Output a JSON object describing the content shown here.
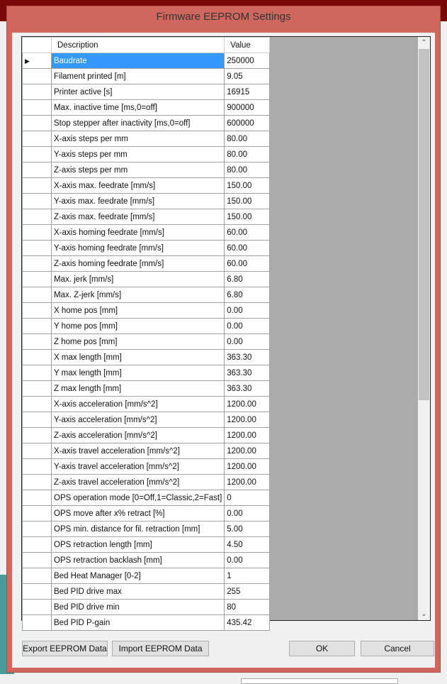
{
  "dialog": {
    "title": "Firmware EEPROM Settings"
  },
  "grid": {
    "headers": {
      "description": "Description",
      "value": "Value"
    },
    "rows": [
      [
        "Baudrate",
        "250000"
      ],
      [
        "Filament printed [m]",
        "9.05"
      ],
      [
        "Printer active [s]",
        "16915"
      ],
      [
        "Max. inactive time [ms,0=off]",
        "900000"
      ],
      [
        "Stop stepper after inactivity [ms,0=off]",
        "600000"
      ],
      [
        "X-axis steps per mm",
        "80.00"
      ],
      [
        "Y-axis steps per mm",
        "80.00"
      ],
      [
        "Z-axis steps per mm",
        "80.00"
      ],
      [
        "X-axis max. feedrate [mm/s]",
        "150.00"
      ],
      [
        "Y-axis max. feedrate [mm/s]",
        "150.00"
      ],
      [
        "Z-axis max. feedrate [mm/s]",
        "150.00"
      ],
      [
        "X-axis homing feedrate [mm/s]",
        "60.00"
      ],
      [
        "Y-axis homing feedrate [mm/s]",
        "60.00"
      ],
      [
        "Z-axis homing feedrate [mm/s]",
        "60.00"
      ],
      [
        "Max. jerk [mm/s]",
        "6.80"
      ],
      [
        "Max. Z-jerk [mm/s]",
        "6.80"
      ],
      [
        "X home pos [mm]",
        "0.00"
      ],
      [
        "Y home pos [mm]",
        "0.00"
      ],
      [
        "Z home pos [mm]",
        "0.00"
      ],
      [
        "X max length [mm]",
        "363.30"
      ],
      [
        "Y max length [mm]",
        "363.30"
      ],
      [
        "Z max length [mm]",
        "363.30"
      ],
      [
        "X-axis acceleration [mm/s^2]",
        "1200.00"
      ],
      [
        "Y-axis acceleration [mm/s^2]",
        "1200.00"
      ],
      [
        "Z-axis acceleration [mm/s^2]",
        "1200.00"
      ],
      [
        "X-axis travel acceleration [mm/s^2]",
        "1200.00"
      ],
      [
        "Y-axis travel acceleration [mm/s^2]",
        "1200.00"
      ],
      [
        "Z-axis travel acceleration [mm/s^2]",
        "1200.00"
      ],
      [
        "OPS operation mode [0=Off,1=Classic,2=Fast]",
        "0"
      ],
      [
        "OPS move after x% retract [%]",
        "0.00"
      ],
      [
        "OPS min. distance for fil. retraction [mm]",
        "5.00"
      ],
      [
        "OPS retraction length [mm]",
        "4.50"
      ],
      [
        "OPS retraction backlash [mm]",
        "0.00"
      ],
      [
        "Bed Heat Manager [0-2]",
        "1"
      ],
      [
        "Bed PID drive max",
        "255"
      ],
      [
        "Bed PID drive min",
        "80"
      ],
      [
        "Bed PID P-gain",
        "435.42"
      ]
    ],
    "selected_row": 0
  },
  "buttons": {
    "export": "Export EEPROM Data",
    "import": "Import EEPROM Data",
    "ok": "OK",
    "cancel": "Cancel"
  }
}
